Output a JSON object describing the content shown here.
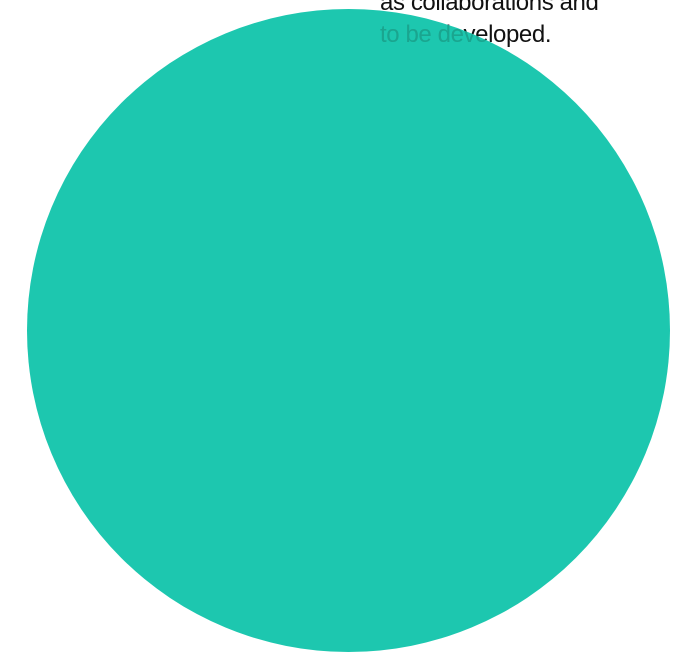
{
  "text_block": {
    "lines": [
      "as collaborations and",
      "to be developed."
    ]
  },
  "colors": {
    "circle": "#1dc7af",
    "text": "#111111",
    "text_on_circle": "#1aa58f",
    "background": "#ffffff"
  }
}
